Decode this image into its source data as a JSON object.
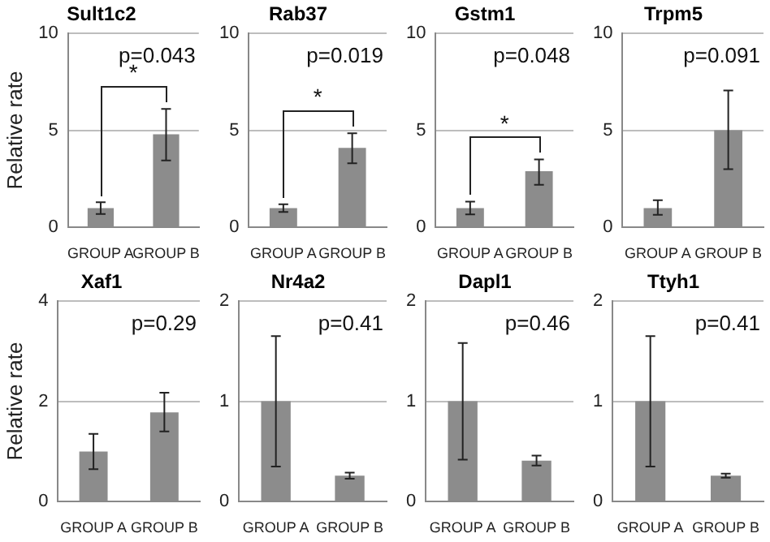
{
  "chart_data": [
    {
      "type": "bar",
      "title": "Sult1c2",
      "ylabel": "Relative rate",
      "categories": [
        "GROUP A",
        "GROUP B"
      ],
      "values": [
        1.0,
        4.8
      ],
      "errors": [
        [
          0.7,
          1.3
        ],
        [
          3.45,
          6.1
        ]
      ],
      "color": "#8c8c8c",
      "ylim": [
        0,
        10
      ],
      "yticks": [
        0,
        5,
        10
      ],
      "grid": "y",
      "annotations": [
        "p=0.043",
        "*"
      ]
    },
    {
      "type": "bar",
      "title": "Rab37",
      "categories": [
        "GROUP A",
        "GROUP B"
      ],
      "values": [
        1.0,
        4.1
      ],
      "errors": [
        [
          0.8,
          1.2
        ],
        [
          3.3,
          4.85
        ]
      ],
      "color": "#8c8c8c",
      "ylim": [
        0,
        10
      ],
      "yticks": [
        0,
        5,
        10
      ],
      "grid": "y",
      "annotations": [
        "p=0.019",
        "*"
      ]
    },
    {
      "type": "bar",
      "title": "Gstm1",
      "categories": [
        "GROUP A",
        "GROUP B"
      ],
      "values": [
        1.0,
        2.9
      ],
      "errors": [
        [
          0.67,
          1.33
        ],
        [
          2.2,
          3.5
        ]
      ],
      "color": "#8c8c8c",
      "ylim": [
        0,
        10
      ],
      "yticks": [
        0,
        5,
        10
      ],
      "grid": "y",
      "annotations": [
        "p=0.048",
        "*"
      ]
    },
    {
      "type": "bar",
      "title": "Trpm5",
      "categories": [
        "GROUP A",
        "GROUP B"
      ],
      "values": [
        1.0,
        5.0
      ],
      "errors": [
        [
          0.65,
          1.4
        ],
        [
          3.0,
          7.05
        ]
      ],
      "color": "#8c8c8c",
      "ylim": [
        0,
        10
      ],
      "yticks": [
        0,
        5,
        10
      ],
      "grid": "y",
      "annotations": [
        "p=0.091"
      ]
    },
    {
      "type": "bar",
      "title": "Xaf1",
      "ylabel": "Relative rate",
      "categories": [
        "GROUP A",
        "GROUP B"
      ],
      "values": [
        1.0,
        1.78
      ],
      "errors": [
        [
          0.65,
          1.35
        ],
        [
          1.4,
          2.17
        ]
      ],
      "color": "#8c8c8c",
      "ylim": [
        0,
        4
      ],
      "yticks": [
        0,
        2,
        4
      ],
      "grid": "y",
      "annotations": [
        "p=0.29"
      ]
    },
    {
      "type": "bar",
      "title": "Nr4a2",
      "categories": [
        "GROUP A",
        "GROUP B"
      ],
      "values": [
        1.0,
        0.26
      ],
      "errors": [
        [
          0.35,
          1.65
        ],
        [
          0.23,
          0.29
        ]
      ],
      "color": "#8c8c8c",
      "ylim": [
        0,
        2
      ],
      "yticks": [
        0,
        1,
        2
      ],
      "grid": "y",
      "annotations": [
        "p=0.41"
      ]
    },
    {
      "type": "bar",
      "title": "Dapl1",
      "categories": [
        "GROUP A",
        "GROUP B"
      ],
      "values": [
        1.0,
        0.41
      ],
      "errors": [
        [
          0.42,
          1.58
        ],
        [
          0.36,
          0.46
        ]
      ],
      "color": "#8c8c8c",
      "ylim": [
        0,
        2
      ],
      "yticks": [
        0,
        1,
        2
      ],
      "grid": "y",
      "annotations": [
        "p=0.46"
      ]
    },
    {
      "type": "bar",
      "title": "Ttyh1",
      "categories": [
        "GROUP A",
        "GROUP B"
      ],
      "values": [
        1.0,
        0.26
      ],
      "errors": [
        [
          0.35,
          1.65
        ],
        [
          0.24,
          0.28
        ]
      ],
      "color": "#8c8c8c",
      "ylim": [
        0,
        2
      ],
      "yticks": [
        0,
        1,
        2
      ],
      "grid": "y",
      "annotations": [
        "p=0.41"
      ]
    }
  ]
}
